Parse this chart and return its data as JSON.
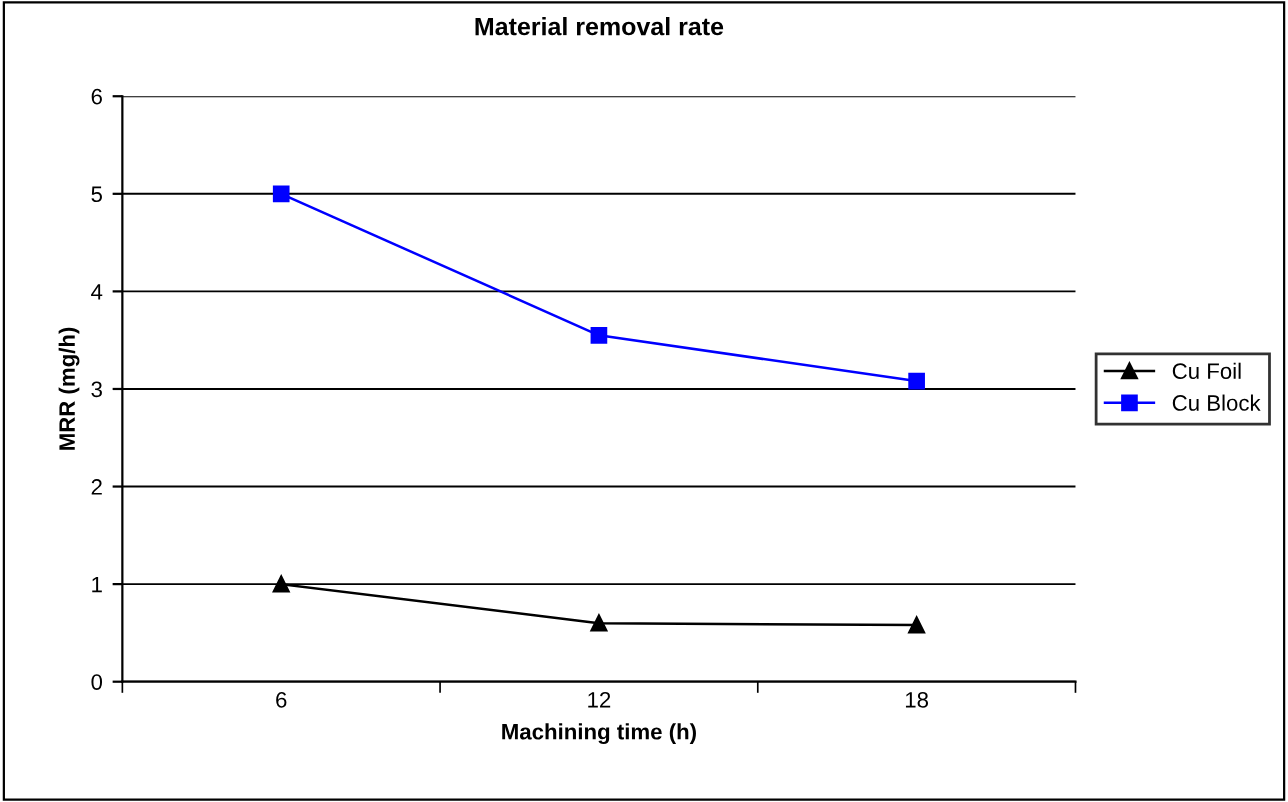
{
  "chart_data": {
    "type": "line",
    "title": "Material removal rate",
    "xlabel": "Machining time (h)",
    "ylabel": "MRR (mg/h)",
    "categories": [
      "6",
      "12",
      "18"
    ],
    "series": [
      {
        "name": "Cu Foil",
        "color": "#000000",
        "marker": "triangle",
        "values": [
          1.0,
          0.6,
          0.58
        ]
      },
      {
        "name": "Cu Block",
        "color": "#0000ff",
        "marker": "square",
        "values": [
          5.0,
          3.55,
          3.08
        ]
      }
    ],
    "ylim": [
      0,
      6
    ],
    "yticks": [
      0,
      1,
      2,
      3,
      4,
      5,
      6
    ],
    "grid": "y",
    "legend": "right",
    "line_style": "solid"
  }
}
